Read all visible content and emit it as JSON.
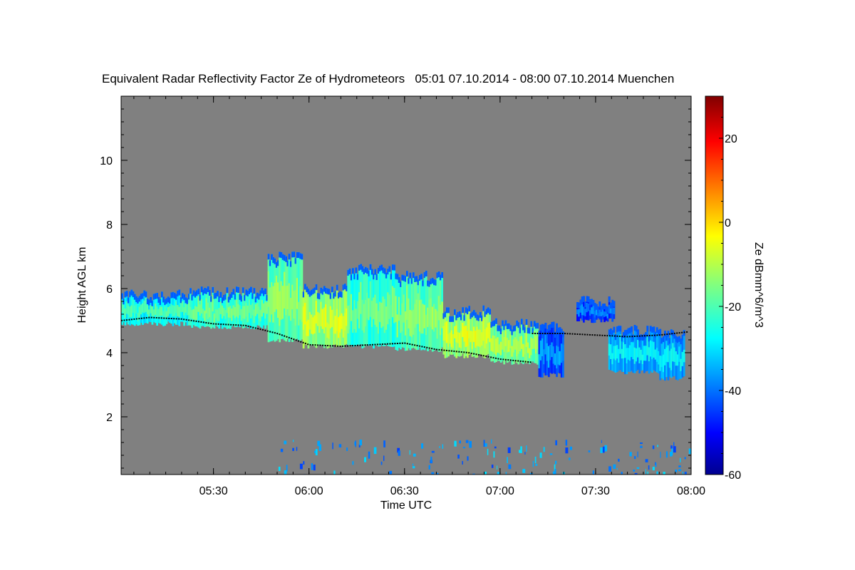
{
  "chart_data": {
    "type": "heatmap",
    "title": "Equivalent Radar Reflectivity Factor Ze of Hydrometeors",
    "time_range_text": "05:01 07.10.2014 - 08:00 07.10.2014",
    "location": "Muenchen",
    "xlabel": "Time UTC",
    "ylabel": "Height AGL km",
    "x_range": [
      "05:01",
      "08:00"
    ],
    "x_range_minutes": [
      301,
      480
    ],
    "x_ticks": [
      {
        "label": "05:30",
        "minute": 330
      },
      {
        "label": "06:00",
        "minute": 360
      },
      {
        "label": "06:30",
        "minute": 390
      },
      {
        "label": "07:00",
        "minute": 420
      },
      {
        "label": "07:30",
        "minute": 450
      },
      {
        "label": "08:00",
        "minute": 480
      }
    ],
    "ylim": [
      0.2,
      12.0
    ],
    "y_ticks": [
      {
        "label": "2",
        "value": 2
      },
      {
        "label": "4",
        "value": 4
      },
      {
        "label": "6",
        "value": 6
      },
      {
        "label": "8",
        "value": 8
      },
      {
        "label": "10",
        "value": 10
      }
    ],
    "colorbar": {
      "label": "Ze dBmm^6/m^3",
      "range": [
        -60,
        30
      ],
      "ticks": [
        "20",
        "0",
        "-20",
        "-40",
        "-60"
      ],
      "tick_values": [
        20,
        0,
        -20,
        -40,
        -60
      ]
    },
    "background_color": "#808080",
    "cloud_regions": [
      {
        "t_start": 301,
        "t_end": 322,
        "base_km": 4.9,
        "top_km": 5.8,
        "ze_dbz": -22
      },
      {
        "t_start": 322,
        "t_end": 347,
        "base_km": 4.8,
        "top_km": 5.9,
        "ze_dbz": -18
      },
      {
        "t_start": 347,
        "t_end": 358,
        "base_km": 4.4,
        "top_km": 7.0,
        "ze_dbz": -15
      },
      {
        "t_start": 358,
        "t_end": 372,
        "base_km": 4.2,
        "top_km": 6.0,
        "ze_dbz": -8
      },
      {
        "t_start": 372,
        "t_end": 387,
        "base_km": 4.2,
        "top_km": 6.6,
        "ze_dbz": -18
      },
      {
        "t_start": 387,
        "t_end": 402,
        "base_km": 4.1,
        "top_km": 6.4,
        "ze_dbz": -15
      },
      {
        "t_start": 402,
        "t_end": 417,
        "base_km": 3.9,
        "top_km": 5.3,
        "ze_dbz": -8
      },
      {
        "t_start": 417,
        "t_end": 432,
        "base_km": 3.7,
        "top_km": 4.9,
        "ze_dbz": -12
      },
      {
        "t_start": 432,
        "t_end": 440,
        "base_km": 3.3,
        "top_km": 4.8,
        "ze_dbz": -38
      },
      {
        "t_start": 444,
        "t_end": 456,
        "base_km": 5.0,
        "top_km": 5.6,
        "ze_dbz": -40
      },
      {
        "t_start": 454,
        "t_end": 470,
        "base_km": 3.4,
        "top_km": 4.7,
        "ze_dbz": -30
      },
      {
        "t_start": 470,
        "t_end": 478,
        "base_km": 3.2,
        "top_km": 4.6,
        "ze_dbz": -30
      }
    ],
    "cloud_base_line": [
      {
        "t": 301,
        "h": 5.0
      },
      {
        "t": 310,
        "h": 5.1
      },
      {
        "t": 320,
        "h": 5.05
      },
      {
        "t": 330,
        "h": 4.9
      },
      {
        "t": 340,
        "h": 4.85
      },
      {
        "t": 350,
        "h": 4.6
      },
      {
        "t": 360,
        "h": 4.25
      },
      {
        "t": 370,
        "h": 4.2
      },
      {
        "t": 380,
        "h": 4.25
      },
      {
        "t": 390,
        "h": 4.3
      },
      {
        "t": 400,
        "h": 4.1
      },
      {
        "t": 410,
        "h": 4.0
      },
      {
        "t": 420,
        "h": 3.8
      },
      {
        "t": 430,
        "h": 3.7
      }
    ],
    "upper_detection_line": [
      {
        "t": 430,
        "h": 4.6
      },
      {
        "t": 440,
        "h": 4.6
      },
      {
        "t": 450,
        "h": 4.55
      },
      {
        "t": 460,
        "h": 4.5
      },
      {
        "t": 470,
        "h": 4.55
      },
      {
        "t": 479,
        "h": 4.65
      }
    ],
    "near_surface_echoes_km": [
      0.2,
      1.3
    ]
  }
}
